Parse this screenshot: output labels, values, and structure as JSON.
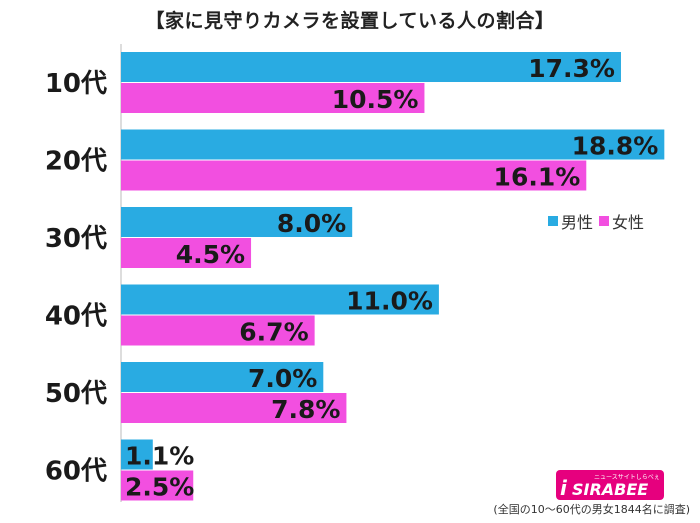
{
  "title": "【家に見守りカメラを設置している人の割合】",
  "legend": {
    "male": "男性",
    "female": "女性"
  },
  "note": "(全国の10〜60代の男女1844名に調査)",
  "logo": {
    "main": "SIRABEE",
    "sub": "ニュースサイトしらべぇ"
  },
  "colors": {
    "male": "#29ABE2",
    "female": "#F24FE0"
  },
  "chart_data": {
    "type": "bar",
    "orientation": "horizontal",
    "title": "【家に見守りカメラを設置している人の割合】",
    "categories": [
      "10代",
      "20代",
      "30代",
      "40代",
      "50代",
      "60代"
    ],
    "series": [
      {
        "name": "男性",
        "values": [
          17.3,
          18.8,
          8.0,
          11.0,
          7.0,
          1.1
        ],
        "labels": [
          "17.3%",
          "18.8%",
          "8.0%",
          "11.0%",
          "7.0%",
          "1.1%"
        ]
      },
      {
        "name": "女性",
        "values": [
          10.5,
          16.1,
          4.5,
          6.7,
          7.8,
          2.5
        ],
        "labels": [
          "10.5%",
          "16.1%",
          "4.5%",
          "6.7%",
          "7.8%",
          "2.5%"
        ]
      }
    ],
    "xlim": [
      0,
      20
    ],
    "grid": false,
    "legend_position": "right"
  }
}
